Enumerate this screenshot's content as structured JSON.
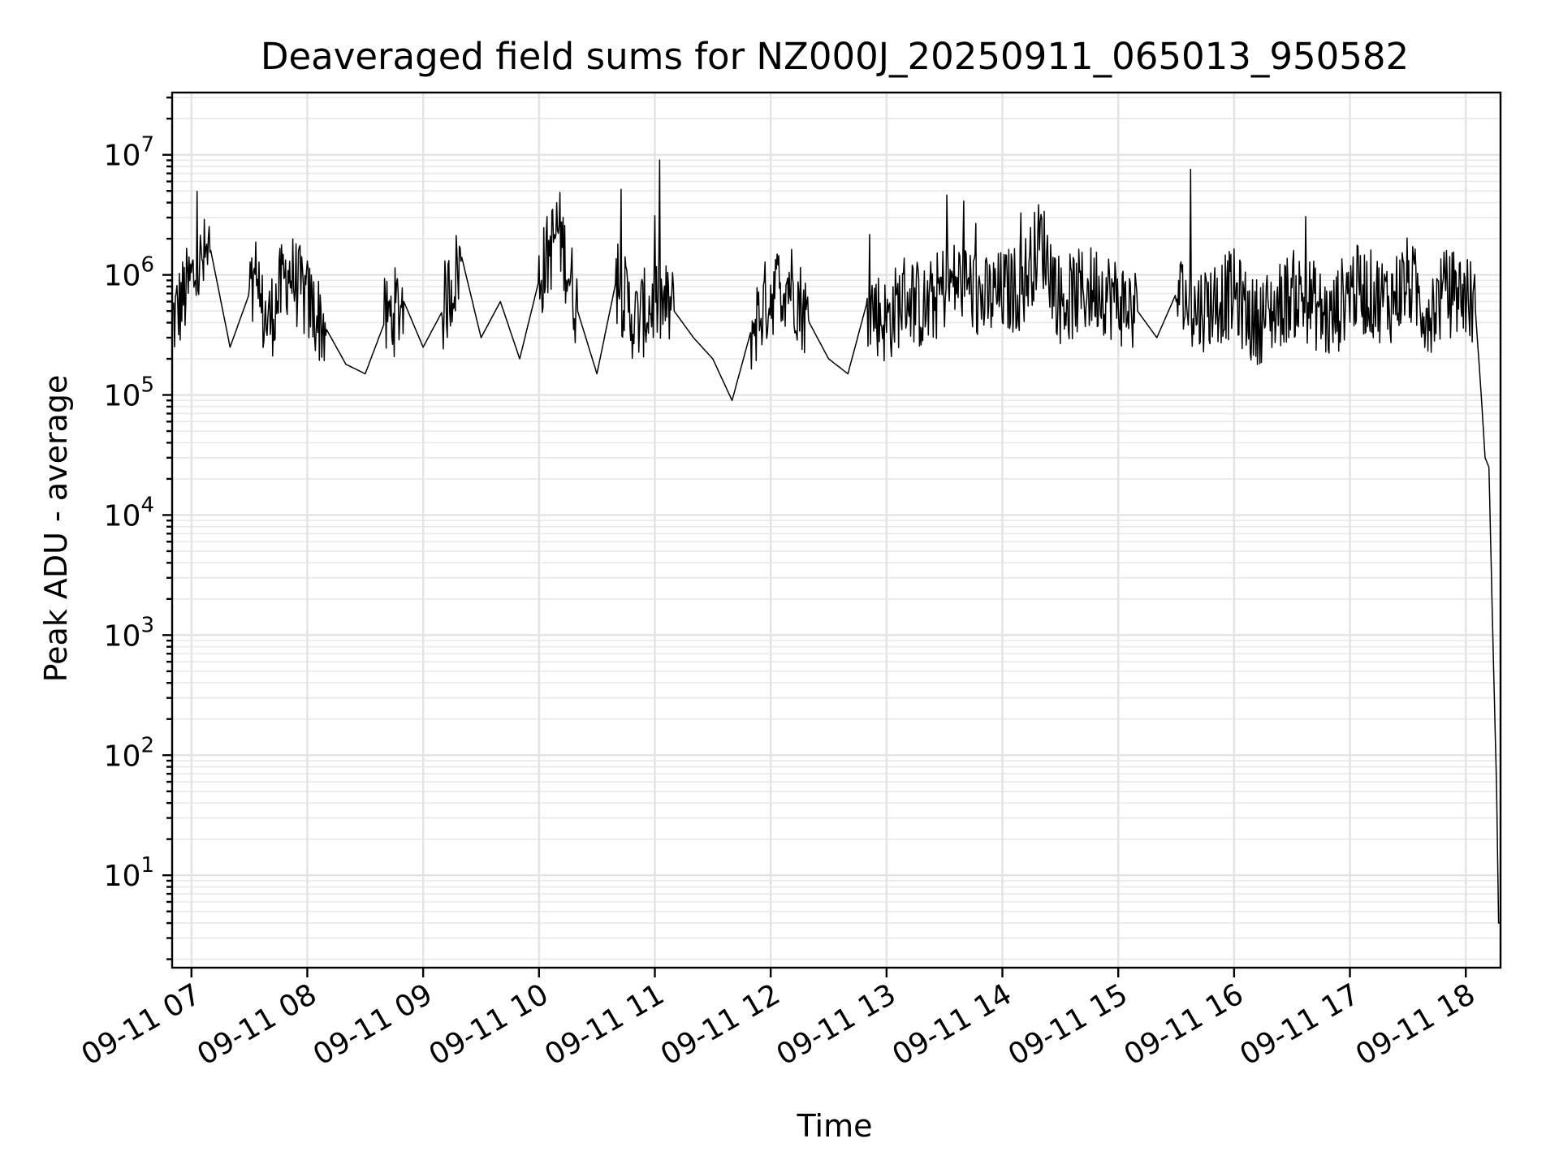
{
  "chart_data": {
    "type": "line",
    "title": "Deaveraged field sums for NZ000J_20250911_065013_950582",
    "xlabel": "Time",
    "ylabel": "Peak ADU - average",
    "yscale": "log",
    "ylim": [
      1.7,
      33000000
    ],
    "xlim": [
      "2025-09-11 06:50",
      "2025-09-11 18:18"
    ],
    "grid": true,
    "x_ticks": [
      {
        "value": "2025-09-11 07:00",
        "label": "09-11 07"
      },
      {
        "value": "2025-09-11 08:00",
        "label": "09-11 08"
      },
      {
        "value": "2025-09-11 09:00",
        "label": "09-11 09"
      },
      {
        "value": "2025-09-11 10:00",
        "label": "09-11 10"
      },
      {
        "value": "2025-09-11 11:00",
        "label": "09-11 11"
      },
      {
        "value": "2025-09-11 12:00",
        "label": "09-11 12"
      },
      {
        "value": "2025-09-11 13:00",
        "label": "09-11 13"
      },
      {
        "value": "2025-09-11 14:00",
        "label": "09-11 14"
      },
      {
        "value": "2025-09-11 15:00",
        "label": "09-11 15"
      },
      {
        "value": "2025-09-11 16:00",
        "label": "09-11 16"
      },
      {
        "value": "2025-09-11 17:00",
        "label": "09-11 17"
      },
      {
        "value": "2025-09-11 18:00",
        "label": "09-11 18"
      }
    ],
    "y_ticks": [
      {
        "value": 10,
        "base": "10",
        "exp": "1"
      },
      {
        "value": 100,
        "base": "10",
        "exp": "2"
      },
      {
        "value": 1000,
        "base": "10",
        "exp": "3"
      },
      {
        "value": 10000,
        "base": "10",
        "exp": "4"
      },
      {
        "value": 100000,
        "base": "10",
        "exp": "5"
      },
      {
        "value": 1000000,
        "base": "10",
        "exp": "6"
      },
      {
        "value": 10000000,
        "base": "10",
        "exp": "7"
      }
    ],
    "series": [
      {
        "color": "#000000",
        "x": [
          "2025-09-11 06:50",
          "2025-09-11 07:00",
          "2025-09-11 07:10",
          "2025-09-11 07:20",
          "2025-09-11 07:30",
          "2025-09-11 07:40",
          "2025-09-11 07:50",
          "2025-09-11 08:00",
          "2025-09-11 08:10",
          "2025-09-11 08:20",
          "2025-09-11 08:30",
          "2025-09-11 08:40",
          "2025-09-11 08:50",
          "2025-09-11 09:00",
          "2025-09-11 09:10",
          "2025-09-11 09:20",
          "2025-09-11 09:30",
          "2025-09-11 09:40",
          "2025-09-11 09:50",
          "2025-09-11 10:00",
          "2025-09-11 10:10",
          "2025-09-11 10:20",
          "2025-09-11 10:30",
          "2025-09-11 10:40",
          "2025-09-11 10:50",
          "2025-09-11 11:00",
          "2025-09-11 11:10",
          "2025-09-11 11:20",
          "2025-09-11 11:30",
          "2025-09-11 11:40",
          "2025-09-11 11:50",
          "2025-09-11 12:00",
          "2025-09-11 12:10",
          "2025-09-11 12:20",
          "2025-09-11 12:30",
          "2025-09-11 12:40",
          "2025-09-11 12:50",
          "2025-09-11 13:00",
          "2025-09-11 13:10",
          "2025-09-11 13:20",
          "2025-09-11 13:30",
          "2025-09-11 13:40",
          "2025-09-11 13:50",
          "2025-09-11 14:00",
          "2025-09-11 14:10",
          "2025-09-11 14:20",
          "2025-09-11 14:30",
          "2025-09-11 14:40",
          "2025-09-11 14:50",
          "2025-09-11 15:00",
          "2025-09-11 15:10",
          "2025-09-11 15:20",
          "2025-09-11 15:30",
          "2025-09-11 15:40",
          "2025-09-11 15:50",
          "2025-09-11 16:00",
          "2025-09-11 16:10",
          "2025-09-11 16:20",
          "2025-09-11 16:30",
          "2025-09-11 16:40",
          "2025-09-11 16:50",
          "2025-09-11 17:00",
          "2025-09-11 17:10",
          "2025-09-11 17:20",
          "2025-09-11 17:30",
          "2025-09-11 17:40",
          "2025-09-11 17:50",
          "2025-09-11 18:00",
          "2025-09-11 18:05",
          "2025-09-11 18:08",
          "2025-09-11 18:10",
          "2025-09-11 18:12",
          "2025-09-11 18:14",
          "2025-09-11 18:16",
          "2025-09-11 18:17",
          "2025-09-11 18:18"
        ],
        "y": [
          400000,
          900000,
          1600000,
          250000,
          700000,
          400000,
          1100000,
          600000,
          350000,
          180000,
          150000,
          400000,
          600000,
          250000,
          500000,
          1400000,
          300000,
          600000,
          200000,
          900000,
          2500000,
          500000,
          150000,
          900000,
          400000,
          600000,
          500000,
          300000,
          200000,
          90000,
          350000,
          700000,
          900000,
          400000,
          200000,
          150000,
          600000,
          400000,
          700000,
          500000,
          800000,
          900000,
          600000,
          700000,
          800000,
          2000000,
          600000,
          700000,
          800000,
          600000,
          500000,
          300000,
          700000,
          500000,
          600000,
          700000,
          400000,
          500000,
          700000,
          600000,
          400000,
          800000,
          700000,
          600000,
          900000,
          500000,
          700000,
          700000,
          500000,
          100000,
          30000,
          25000,
          1000,
          50,
          4,
          4
        ]
      }
    ]
  }
}
